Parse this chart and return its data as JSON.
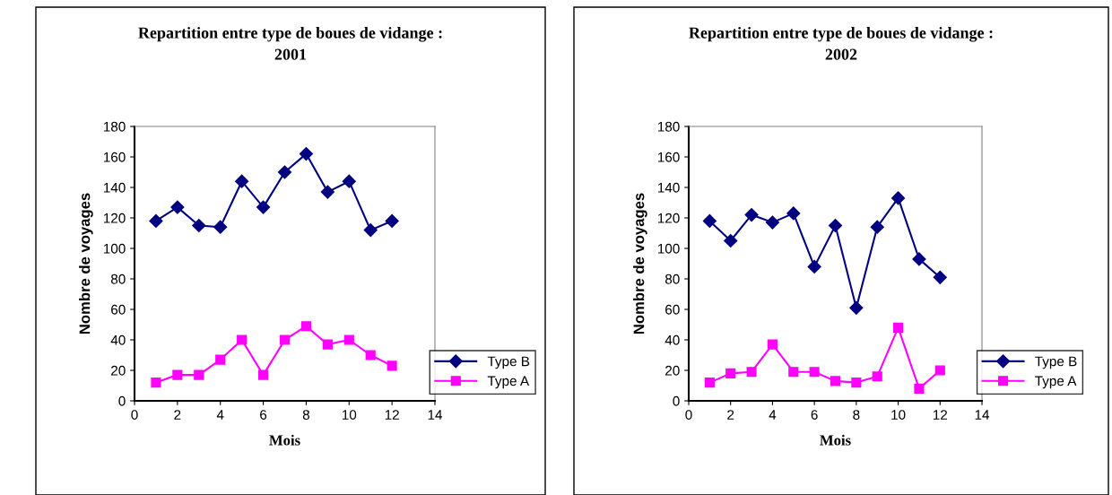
{
  "chart_data": [
    {
      "type": "line",
      "title": "Repartition entre type de boues de vidange :\n2001",
      "xlabel": "Mois",
      "ylabel": "Nombre de voyages",
      "x": [
        1,
        2,
        3,
        4,
        5,
        6,
        7,
        8,
        9,
        10,
        11,
        12
      ],
      "series": [
        {
          "name": "Type B",
          "color": "#000080",
          "marker": "diamond",
          "values": [
            118,
            127,
            115,
            114,
            144,
            127,
            150,
            162,
            137,
            144,
            112,
            118
          ]
        },
        {
          "name": "Type A",
          "color": "#ff00ff",
          "marker": "square",
          "values": [
            12,
            17,
            17,
            27,
            40,
            17,
            40,
            49,
            37,
            40,
            30,
            23
          ]
        }
      ],
      "xlim": [
        0,
        14
      ],
      "xticks": [
        0,
        2,
        4,
        6,
        8,
        10,
        12,
        14
      ],
      "ylim": [
        0,
        180
      ],
      "yticks": [
        0,
        20,
        40,
        60,
        80,
        100,
        120,
        140,
        160,
        180
      ],
      "grid": false,
      "legend": "right"
    },
    {
      "type": "line",
      "title": "Repartition entre type de boues de vidange :\n2002",
      "xlabel": "Mois",
      "ylabel": "Nombre de voyages",
      "x": [
        1,
        2,
        3,
        4,
        5,
        6,
        7,
        8,
        9,
        10,
        11,
        12
      ],
      "series": [
        {
          "name": "Type B",
          "color": "#000080",
          "marker": "diamond",
          "values": [
            118,
            105,
            122,
            117,
            123,
            88,
            115,
            61,
            114,
            133,
            93,
            81
          ]
        },
        {
          "name": "Type A",
          "color": "#ff00ff",
          "marker": "square",
          "values": [
            12,
            18,
            19,
            37,
            19,
            19,
            13,
            12,
            16,
            48,
            8,
            20
          ]
        }
      ],
      "xlim": [
        0,
        14
      ],
      "xticks": [
        0,
        2,
        4,
        6,
        8,
        10,
        12,
        14
      ],
      "ylim": [
        0,
        180
      ],
      "yticks": [
        0,
        20,
        40,
        60,
        80,
        100,
        120,
        140,
        160,
        180
      ],
      "grid": false,
      "legend": "right"
    }
  ]
}
